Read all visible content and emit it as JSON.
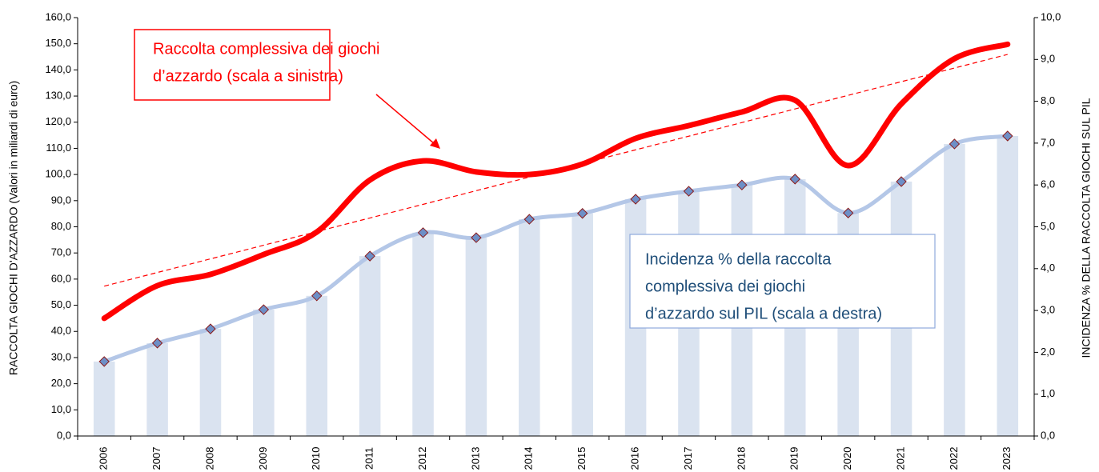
{
  "chart_data": {
    "type": "bar_line",
    "y_axis_title": "RACCOLTA GIOCHI D'AZZARDO (Valori in miliardi di euro)",
    "y2_axis_title": "INCIDENZA % DELLA RACCOLTA GIOCHI SUL PIL",
    "categories": [
      "2006",
      "2007",
      "2008",
      "2009",
      "2010",
      "2011",
      "2012",
      "2013",
      "2014",
      "2015",
      "2016",
      "2017",
      "2018",
      "2019",
      "2020",
      "2021",
      "2022",
      "2023"
    ],
    "series": [
      {
        "type": "line",
        "color": "#ff0000",
        "axis": "y",
        "trendline": true,
        "values": [
          45,
          57.5,
          61.8,
          69.4,
          78,
          97.9,
          105.2,
          101,
          100,
          104,
          113.8,
          118.7,
          123.9,
          128.4,
          103.4,
          127,
          144.3,
          149.8
        ]
      },
      {
        "type": "bar",
        "color": "#dae3f0",
        "line_color": "#b4c7e7",
        "marker_color": "#6d8fc7",
        "marker_edge": "#8b1a1a",
        "axis": "y2",
        "values": [
          1.78,
          2.22,
          2.56,
          3.02,
          3.35,
          4.3,
          4.86,
          4.74,
          5.18,
          5.32,
          5.66,
          5.85,
          6.0,
          6.14,
          5.33,
          6.08,
          6.98,
          7.17
        ]
      }
    ],
    "annotations": [
      {
        "text_lines": [
          "Raccolta complessiva dei giochi",
          "d’azzardo (scala a sinistra)"
        ],
        "color": "#ff0000"
      },
      {
        "text_lines": [
          "Incidenza % della raccolta",
          "complessiva dei giochi",
          "d’azzardo sul PIL (scala a destra)"
        ],
        "color": "#1f4e79"
      }
    ],
    "ylim": [
      0,
      160
    ],
    "yticks": [
      {
        "value": 0,
        "label": "0,0"
      },
      {
        "value": 10,
        "label": "10,0"
      },
      {
        "value": 20,
        "label": "20,0"
      },
      {
        "value": 30,
        "label": "30,0"
      },
      {
        "value": 40,
        "label": "40,0"
      },
      {
        "value": 50,
        "label": "50,0"
      },
      {
        "value": 60,
        "label": "60,0"
      },
      {
        "value": 70,
        "label": "70,0"
      },
      {
        "value": 80,
        "label": "80,0"
      },
      {
        "value": 90,
        "label": "90,0"
      },
      {
        "value": 100,
        "label": "100,0"
      },
      {
        "value": 110,
        "label": "110,0"
      },
      {
        "value": 120,
        "label": "120,0"
      },
      {
        "value": 130,
        "label": "130,0"
      },
      {
        "value": 140,
        "label": "140,0"
      },
      {
        "value": 150,
        "label": "150,0"
      },
      {
        "value": 160,
        "label": "160,0"
      }
    ],
    "y2lim": [
      0,
      10
    ],
    "y2ticks": [
      {
        "value": 0,
        "label": "0,0"
      },
      {
        "value": 1,
        "label": "1,0"
      },
      {
        "value": 2,
        "label": "2,0"
      },
      {
        "value": 3,
        "label": "3,0"
      },
      {
        "value": 4,
        "label": "4,0"
      },
      {
        "value": 5,
        "label": "5,0"
      },
      {
        "value": 6,
        "label": "6,0"
      },
      {
        "value": 7,
        "label": "7,0"
      },
      {
        "value": 8,
        "label": "8,0"
      },
      {
        "value": 9,
        "label": "9,0"
      },
      {
        "value": 10,
        "label": "10,0"
      }
    ]
  }
}
